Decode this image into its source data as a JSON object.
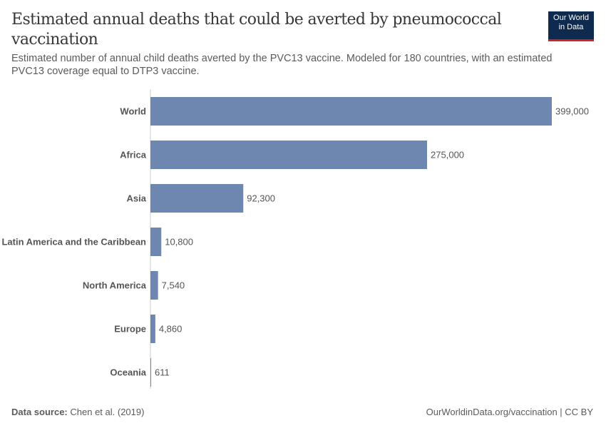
{
  "header": {
    "title": "Estimated annual deaths that could be averted by pneumococcal vaccination",
    "subtitle": "Estimated number of annual child deaths averted by the PVC13 vaccine. Modeled for 180 countries, with an estimated PVC13 coverage equal to DTP3 vaccine.",
    "logo_line1": "Our World",
    "logo_line2": "in Data"
  },
  "footer": {
    "source_label": "Data source:",
    "source": "Chen et al. (2019)",
    "url": "OurWorldinData.org/vaccination | CC BY"
  },
  "colors": {
    "bar": "#6d87b0",
    "logo_bg": "#0f2a4f",
    "logo_accent": "#ce261e"
  },
  "chart_data": {
    "type": "bar",
    "orientation": "horizontal",
    "categories": [
      "World",
      "Africa",
      "Asia",
      "Latin America and the Caribbean",
      "North America",
      "Europe",
      "Oceania"
    ],
    "values": [
      399000,
      275000,
      92300,
      10800,
      7540,
      4860,
      611
    ],
    "labels": [
      "399,000",
      "275,000",
      "92,300",
      "10,800",
      "7,540",
      "4,860",
      "611"
    ],
    "xlim": [
      0,
      399000
    ],
    "grid": false
  }
}
